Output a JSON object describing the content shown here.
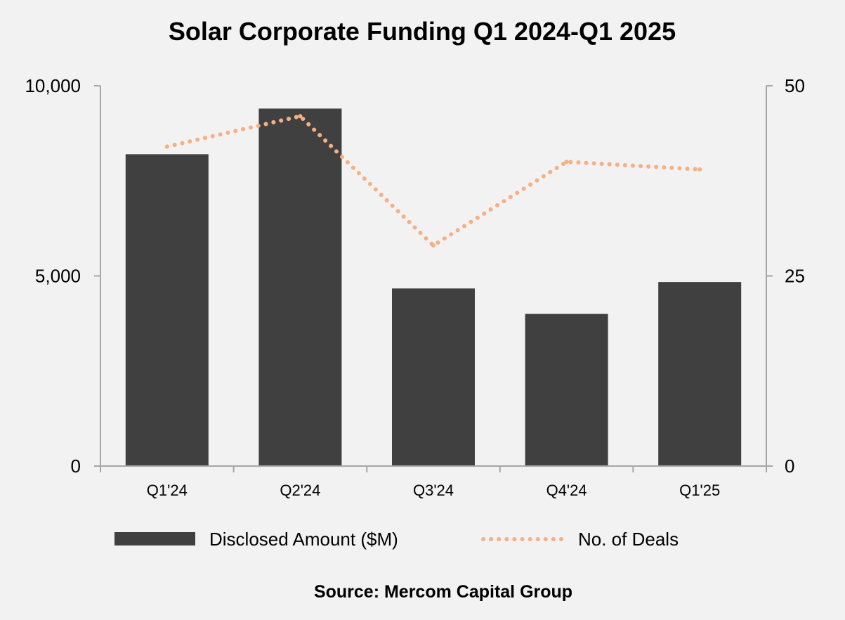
{
  "chart_data": {
    "type": "bar",
    "title": "Solar Corporate Funding Q1 2024-Q1 2025",
    "categories": [
      "Q1'24",
      "Q2'24",
      "Q3'24",
      "Q4'24",
      "Q1'25"
    ],
    "series": [
      {
        "name": "Disclosed Amount ($M)",
        "type": "bar",
        "axis": "left",
        "values": [
          8200,
          9400,
          4670,
          4000,
          4840
        ]
      },
      {
        "name": "No. of Deals",
        "type": "line",
        "style": "dotted",
        "axis": "right",
        "values": [
          42,
          46,
          29,
          40,
          39
        ]
      }
    ],
    "y_left": {
      "min": 0,
      "max": 10000,
      "ticks": [
        0,
        5000,
        10000
      ],
      "tick_labels": [
        "0",
        "5,000",
        "10,000"
      ]
    },
    "y_right": {
      "min": 0,
      "max": 50,
      "ticks": [
        0,
        25,
        50
      ],
      "tick_labels": [
        "0",
        "25",
        "50"
      ]
    },
    "grid": false,
    "legend_position": "bottom",
    "source": "Source: Mercom Capital Group",
    "colors": {
      "background": "#f2f2f2",
      "bar": "#404040",
      "line": "#f4b183",
      "axis": "#a6a6a6",
      "text": "#000000"
    }
  }
}
